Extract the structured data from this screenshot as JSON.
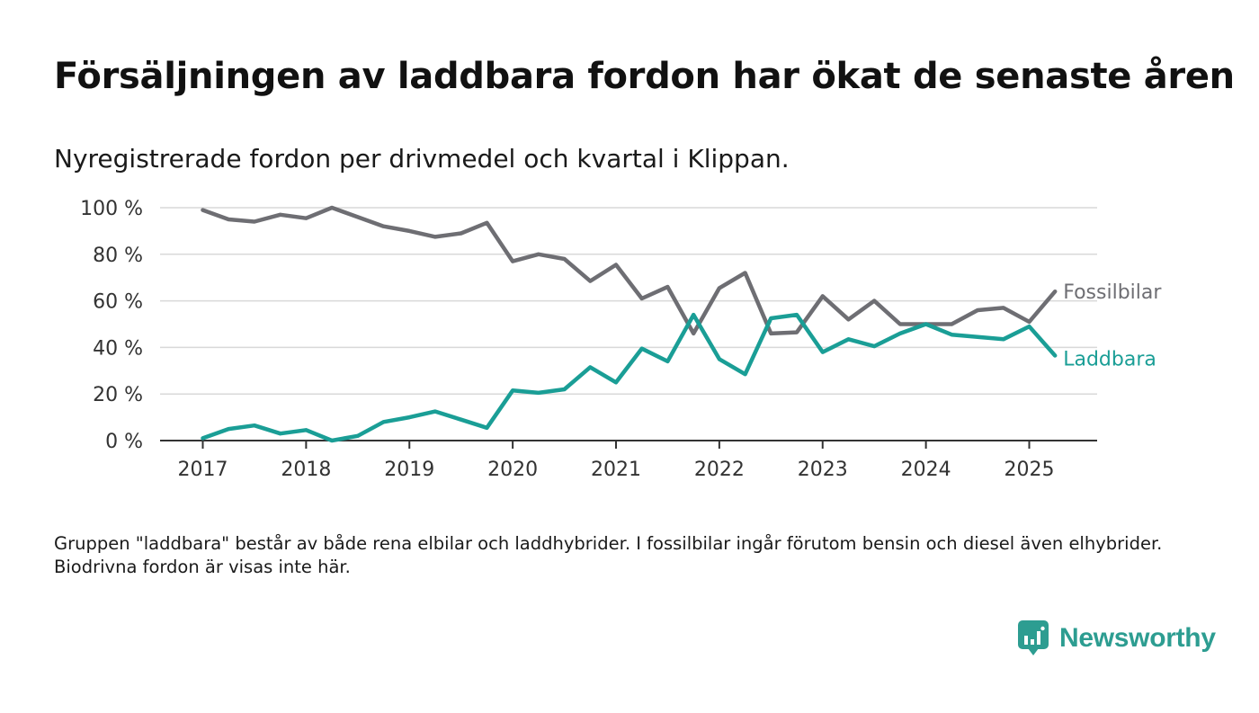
{
  "title": "Försäljningen av laddbara fordon har ökat de senaste åren",
  "subtitle": "Nyregistrerade fordon per drivmedel och kvartal i Klippan.",
  "note": "Gruppen \"laddbara\" består av både rena elbilar och laddhybrider. I fossilbilar ingår förutom bensin och diesel även elhybrider. Biodrivna fordon är visas inte här.",
  "brand": {
    "name": "Newsworthy",
    "icon": "newsworthy-logo-icon",
    "color": "#2d9d91"
  },
  "chart_data": {
    "type": "line",
    "x": [
      2017.0,
      2017.25,
      2017.5,
      2017.75,
      2018.0,
      2018.25,
      2018.5,
      2018.75,
      2019.0,
      2019.25,
      2019.5,
      2019.75,
      2020.0,
      2020.25,
      2020.5,
      2020.75,
      2021.0,
      2021.25,
      2021.5,
      2021.75,
      2022.0,
      2022.25,
      2022.5,
      2022.75,
      2023.0,
      2023.25,
      2023.5,
      2023.75,
      2024.0,
      2024.25,
      2024.5,
      2024.75,
      2025.0,
      2025.25
    ],
    "xticks": [
      "2017",
      "2018",
      "2019",
      "2020",
      "2021",
      "2022",
      "2023",
      "2024",
      "2025"
    ],
    "xtick_values": [
      2017,
      2018,
      2019,
      2020,
      2021,
      2022,
      2023,
      2024,
      2025
    ],
    "xlim": [
      2016.55,
      2025.7
    ],
    "ylim": [
      0,
      100
    ],
    "yticks": [
      "0 %",
      "20 %",
      "40 %",
      "60 %",
      "80 %",
      "100 %"
    ],
    "ytick_values": [
      0,
      20,
      40,
      60,
      80,
      100
    ],
    "grid": true,
    "series": [
      {
        "name": "Fossilbilar",
        "color": "#6e6e73",
        "values": [
          99,
          95,
          94,
          97,
          95.5,
          100,
          96,
          92,
          90,
          87.5,
          89,
          93.5,
          77,
          80,
          78,
          68.5,
          75.5,
          61,
          66,
          46,
          65.5,
          72,
          46,
          46.5,
          62,
          52,
          60,
          50,
          50,
          50,
          56,
          57,
          51,
          64
        ]
      },
      {
        "name": "Laddbara",
        "color": "#1a9e96",
        "values": [
          1,
          5,
          6.5,
          3,
          4.5,
          0,
          2,
          8,
          10,
          12.5,
          9,
          5.5,
          21.5,
          20.5,
          22,
          31.5,
          25,
          39.5,
          34,
          54,
          35,
          28.5,
          52.5,
          54,
          38,
          43.5,
          40.5,
          46,
          50,
          45.5,
          44.5,
          43.5,
          49,
          36.5
        ]
      }
    ]
  }
}
